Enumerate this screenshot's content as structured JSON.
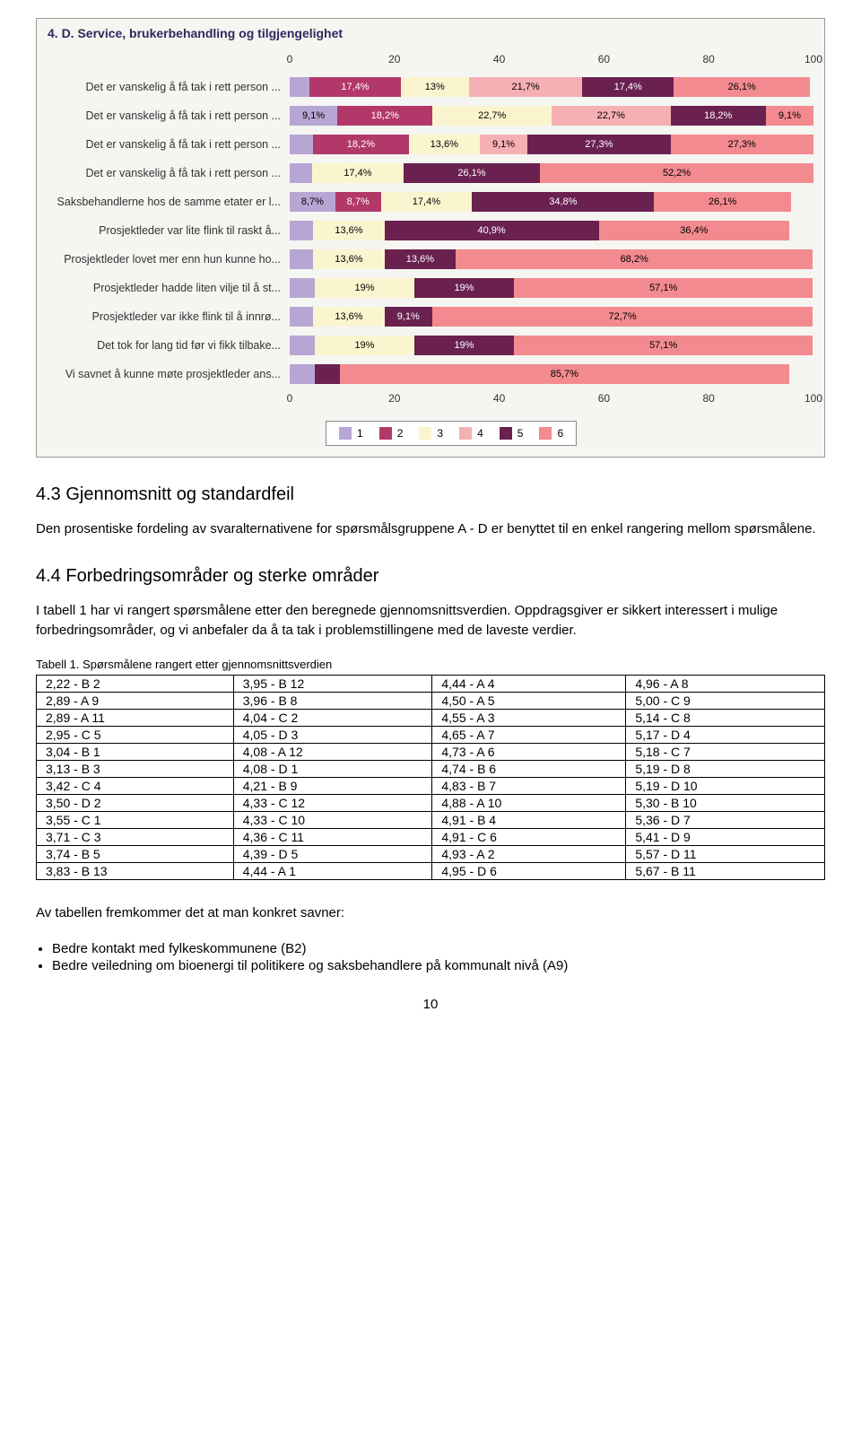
{
  "chart": {
    "title": "4. D. Service, brukerbehandling og tilgjengelighet",
    "axis_ticks": [
      0,
      20,
      40,
      60,
      80,
      100
    ],
    "colors": {
      "c1": "#b7a6d4",
      "c2": "#b3386a",
      "c3": "#fbf5cf",
      "c4": "#f5b0b3",
      "c5": "#6a2150",
      "c6": "#f28a8f"
    },
    "legend": [
      "1",
      "2",
      "3",
      "4",
      "5",
      "6"
    ],
    "rows": [
      {
        "label": "Det er vanskelig å få tak i rett person ...",
        "segs": [
          {
            "c": "c1",
            "v": 3.8,
            "t": ""
          },
          {
            "c": "c2",
            "v": 17.4,
            "t": "17,4%"
          },
          {
            "c": "c3",
            "v": 13,
            "t": "13%"
          },
          {
            "c": "c4",
            "v": 21.7,
            "t": "21,7%"
          },
          {
            "c": "c5",
            "v": 17.4,
            "t": "17,4%"
          },
          {
            "c": "c6",
            "v": 26.1,
            "t": "26,1%"
          }
        ]
      },
      {
        "label": "Det er vanskelig å få tak i rett person ...",
        "segs": [
          {
            "c": "c1",
            "v": 9.1,
            "t": "9,1%"
          },
          {
            "c": "c2",
            "v": 18.2,
            "t": "18,2%"
          },
          {
            "c": "c3",
            "v": 22.7,
            "t": "22,7%"
          },
          {
            "c": "c4",
            "v": 22.7,
            "t": "22,7%"
          },
          {
            "c": "c5",
            "v": 18.2,
            "t": "18,2%"
          },
          {
            "c": "c6",
            "v": 9.1,
            "t": "9,1%"
          }
        ]
      },
      {
        "label": "Det er vanskelig å få tak i rett person ...",
        "segs": [
          {
            "c": "c1",
            "v": 4.5,
            "t": ""
          },
          {
            "c": "c2",
            "v": 18.2,
            "t": "18,2%"
          },
          {
            "c": "c3",
            "v": 13.6,
            "t": "13,6%"
          },
          {
            "c": "c4",
            "v": 9.1,
            "t": "9,1%"
          },
          {
            "c": "c5",
            "v": 27.3,
            "t": "27,3%"
          },
          {
            "c": "c6",
            "v": 27.3,
            "t": "27,3%"
          }
        ]
      },
      {
        "label": "Det er vanskelig å få tak i rett person ...",
        "segs": [
          {
            "c": "c1",
            "v": 4.3,
            "t": ""
          },
          {
            "c": "c3",
            "v": 17.4,
            "t": "17,4%"
          },
          {
            "c": "c5",
            "v": 26.1,
            "t": "26,1%"
          },
          {
            "c": "c6",
            "v": 52.2,
            "t": "52,2%"
          }
        ]
      },
      {
        "label": "Saksbehandlerne hos de samme etater er l...",
        "segs": [
          {
            "c": "c1",
            "v": 8.7,
            "t": "8,7%"
          },
          {
            "c": "c2",
            "v": 8.7,
            "t": "8,7%"
          },
          {
            "c": "c3",
            "v": 17.4,
            "t": "17,4%"
          },
          {
            "c": "c5",
            "v": 34.8,
            "t": "34,8%"
          },
          {
            "c": "c6",
            "v": 26.1,
            "t": "26,1%"
          }
        ]
      },
      {
        "label": "Prosjektleder var lite flink til raskt å...",
        "segs": [
          {
            "c": "c1",
            "v": 4.5,
            "t": ""
          },
          {
            "c": "c3",
            "v": 13.6,
            "t": "13,6%"
          },
          {
            "c": "c5",
            "v": 40.9,
            "t": "40,9%"
          },
          {
            "c": "c6",
            "v": 36.4,
            "t": "36,4%"
          }
        ]
      },
      {
        "label": "Prosjektleder lovet mer enn hun kunne ho...",
        "segs": [
          {
            "c": "c1",
            "v": 4.5,
            "t": ""
          },
          {
            "c": "c3",
            "v": 13.6,
            "t": "13,6%"
          },
          {
            "c": "c5",
            "v": 13.6,
            "t": "13,6%"
          },
          {
            "c": "c6",
            "v": 68.2,
            "t": "68,2%"
          }
        ]
      },
      {
        "label": "Prosjektleder hadde liten vilje til å st...",
        "segs": [
          {
            "c": "c1",
            "v": 4.8,
            "t": ""
          },
          {
            "c": "c3",
            "v": 19,
            "t": "19%"
          },
          {
            "c": "c5",
            "v": 19,
            "t": "19%"
          },
          {
            "c": "c6",
            "v": 57.1,
            "t": "57,1%"
          }
        ]
      },
      {
        "label": "Prosjektleder var ikke flink til å innrø...",
        "segs": [
          {
            "c": "c1",
            "v": 4.5,
            "t": ""
          },
          {
            "c": "c3",
            "v": 13.6,
            "t": "13,6%"
          },
          {
            "c": "c5",
            "v": 9.1,
            "t": "9,1%"
          },
          {
            "c": "c6",
            "v": 72.7,
            "t": "72,7%"
          }
        ]
      },
      {
        "label": "Det tok for lang tid før vi fikk tilbake...",
        "segs": [
          {
            "c": "c1",
            "v": 4.8,
            "t": ""
          },
          {
            "c": "c3",
            "v": 19,
            "t": "19%"
          },
          {
            "c": "c5",
            "v": 19,
            "t": "19%"
          },
          {
            "c": "c6",
            "v": 57.1,
            "t": "57,1%"
          }
        ]
      },
      {
        "label": "Vi savnet å kunne møte prosjektleder ans...",
        "segs": [
          {
            "c": "c1",
            "v": 4.8,
            "t": ""
          },
          {
            "c": "c5",
            "v": 4.8,
            "t": ""
          },
          {
            "c": "c6",
            "v": 85.7,
            "t": "85,7%"
          }
        ]
      }
    ]
  },
  "section_43": {
    "heading": "4.3 Gjennomsnitt og standardfeil",
    "para": "Den prosentiske fordeling av svaralternativene for spørsmålsgruppene A - D er benyttet til en enkel rangering mellom spørsmålene."
  },
  "section_44": {
    "heading": "4.4 Forbedringsområder og sterke områder",
    "para": "I tabell 1 har vi rangert spørsmålene etter den beregnede gjennomsnittsverdien. Oppdragsgiver er sikkert interessert i mulige forbedringsområder, og vi anbefaler da å ta tak i problemstillingene med de laveste verdier."
  },
  "table": {
    "caption": "Tabell 1. Spørsmålene rangert etter gjennomsnittsverdien",
    "cols": 4,
    "cells": [
      [
        "2,22  -  B 2",
        "3,95  -  B 12",
        "4,44  -  A 4",
        "4,96  -  A 8"
      ],
      [
        "2,89  -  A 9",
        "3,96  -  B 8",
        "4,50  -  A 5",
        "5,00  -  C 9"
      ],
      [
        "2,89  -  A 11",
        "4,04  -  C 2",
        "4,55  -  A 3",
        "5,14  -  C 8"
      ],
      [
        "2,95  -  C 5",
        "4,05  -  D 3",
        "4,65  -  A 7",
        "5,17  -  D 4"
      ],
      [
        "3,04  -  B 1",
        "4,08  -  A 12",
        "4,73  -  A 6",
        "5,18  -  C 7"
      ],
      [
        "3,13  -  B 3",
        "4,08  -  D 1",
        "4,74  -  B 6",
        "5,19  -  D 8"
      ],
      [
        "3,42  -  C 4",
        "4,21  -  B 9",
        "4,83  -  B 7",
        "5,19  -  D 10"
      ],
      [
        "3,50  -  D 2",
        "4,33  -  C 12",
        "4,88  -  A 10",
        "5,30  -  B 10"
      ],
      [
        "3,55  -  C 1",
        "4,33  -  C 10",
        "4,91  -  B 4",
        "5,36  -  D 7"
      ],
      [
        "3,71  -  C 3",
        "4,36  -  C 11",
        "4,91  -  C 6",
        "5,41  -  D 9"
      ],
      [
        "3,74  -  B 5",
        "4,39  -  D 5",
        "4,93  -  A 2",
        "5,57  -  D 11"
      ],
      [
        "3,83  -  B 13",
        "4,44  -  A 1",
        "4,95  -  D 6",
        "5,67  -  B 11"
      ]
    ]
  },
  "closing": {
    "para": "Av tabellen fremkommer det at man konkret savner:",
    "bullets": [
      "Bedre kontakt med fylkeskommunene (B2)",
      "Bedre veiledning om bioenergi til politikere og saksbehandlere på kommunalt nivå (A9)"
    ]
  },
  "page_number": "10"
}
